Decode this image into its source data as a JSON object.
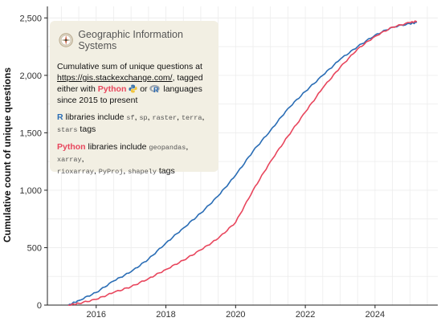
{
  "chart_data": {
    "type": "line",
    "title": "",
    "xlabel": "",
    "ylabel": "Cumulative count of unique questions",
    "xlim": [
      2014.6,
      2025.8
    ],
    "ylim": [
      0,
      2600
    ],
    "grid": true,
    "x_ticks": [
      2016,
      2018,
      2020,
      2022,
      2024
    ],
    "x_tick_labels": [
      "2016",
      "2018",
      "2020",
      "2022",
      "2024"
    ],
    "y_ticks": [
      0,
      500,
      1000,
      1500,
      2000,
      2500
    ],
    "y_tick_labels": [
      "0",
      "500",
      "1,000",
      "1,500",
      "2,000",
      "2,500"
    ],
    "series": [
      {
        "name": "R",
        "color": "#2a6db5",
        "x": [
          2015.2,
          2015.5,
          2016.0,
          2016.5,
          2017.0,
          2017.5,
          2018.0,
          2018.5,
          2019.0,
          2019.5,
          2020.0,
          2020.5,
          2021.0,
          2021.5,
          2022.0,
          2022.5,
          2023.0,
          2023.5,
          2024.0,
          2024.5,
          2025.0,
          2025.2
        ],
        "y": [
          0,
          40,
          110,
          210,
          290,
          400,
          540,
          670,
          800,
          950,
          1130,
          1340,
          1520,
          1710,
          1860,
          2000,
          2140,
          2250,
          2350,
          2420,
          2450,
          2460
        ]
      },
      {
        "name": "Python",
        "color": "#e8465d",
        "x": [
          2015.2,
          2015.5,
          2016.0,
          2016.5,
          2017.0,
          2017.5,
          2018.0,
          2018.5,
          2019.0,
          2019.5,
          2020.0,
          2020.5,
          2021.0,
          2021.5,
          2022.0,
          2022.5,
          2023.0,
          2023.5,
          2024.0,
          2024.5,
          2025.0,
          2025.2
        ],
        "y": [
          0,
          15,
          50,
          110,
          160,
          230,
          310,
          390,
          480,
          580,
          720,
          1000,
          1250,
          1470,
          1680,
          1890,
          2070,
          2230,
          2340,
          2420,
          2460,
          2470
        ]
      }
    ]
  },
  "note": {
    "title": "Geographic Information Systems",
    "line1": "Cumulative sum of unique questions at",
    "link": "https://gis.stackexchange.com/",
    "line2": ", tagged either with ",
    "python": "Python",
    "or": " or ",
    "line3": " languages since 2015 to present",
    "r_label": "R",
    "r_text": " libraries include ",
    "r_tags": [
      "sf",
      "sp",
      "raster",
      "terra",
      "stars"
    ],
    "python_label": "Python",
    "python_text": " libraries include ",
    "python_tags": [
      "geopandas",
      "xarray",
      "rioxarray",
      "PyProj",
      "shapely"
    ],
    "tags_word": " tags",
    "sep": ", "
  }
}
